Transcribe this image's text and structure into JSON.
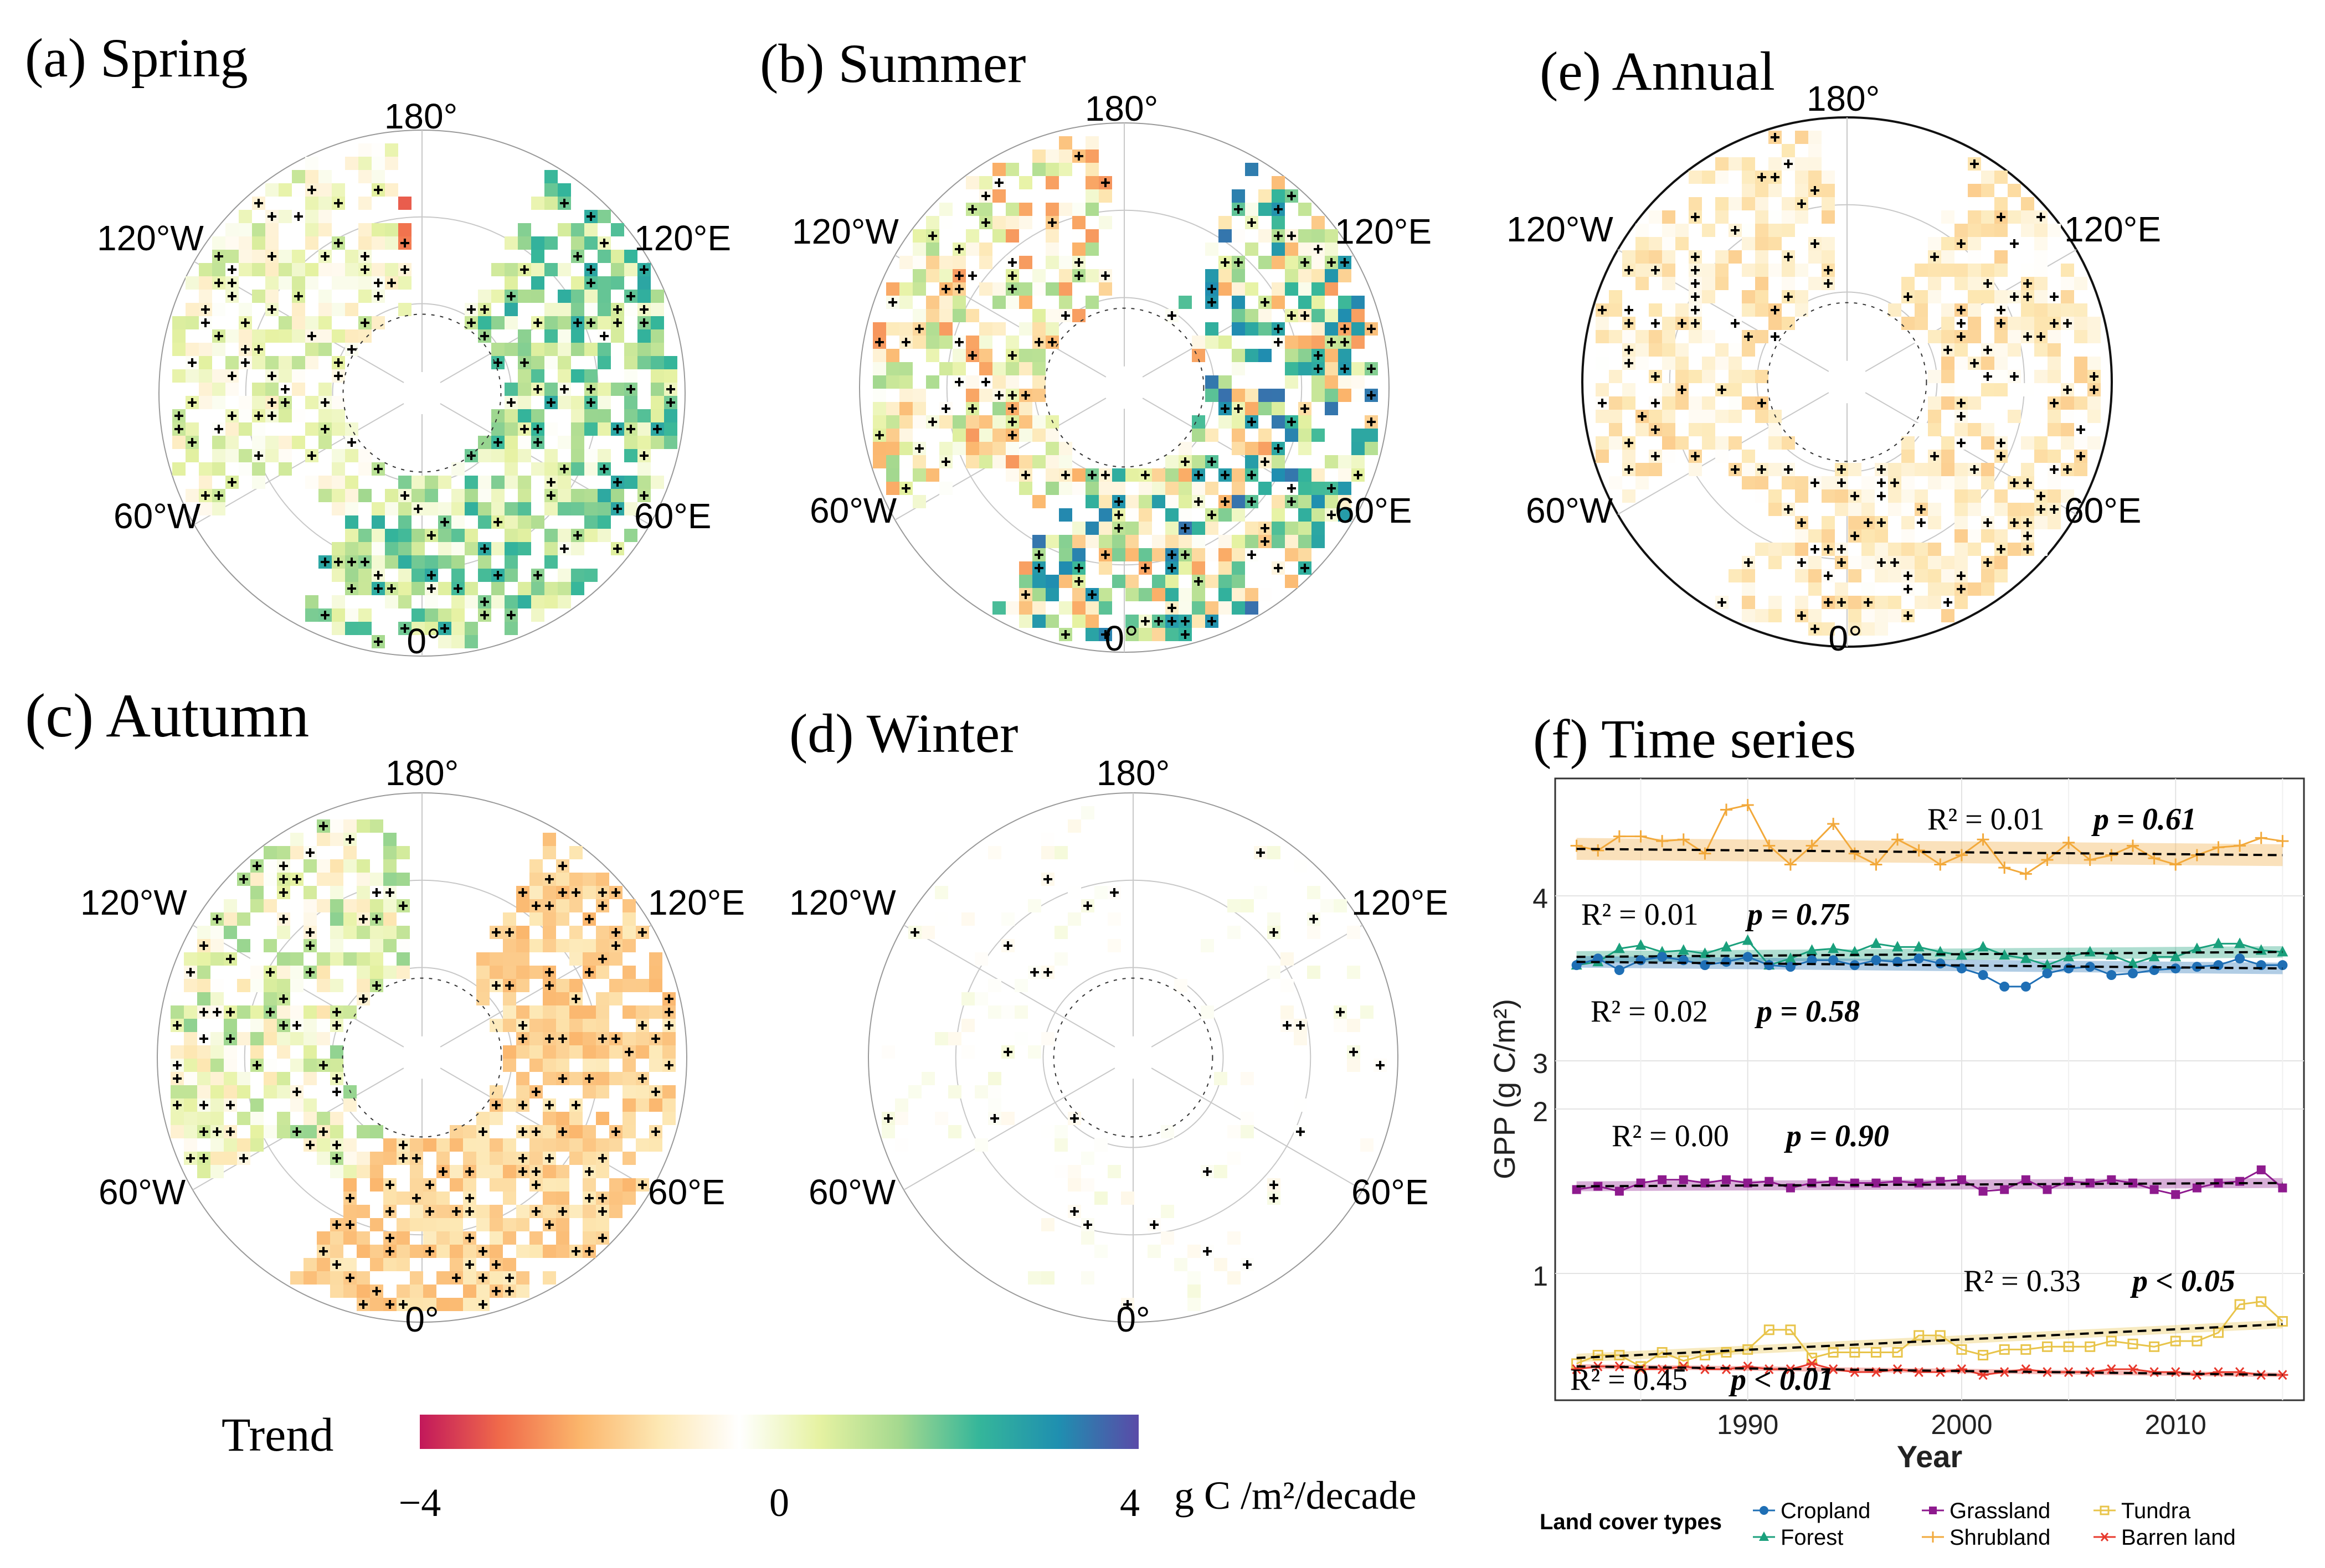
{
  "panels": [
    {
      "id": "a",
      "title": "(a) Spring"
    },
    {
      "id": "b",
      "title": "(b)  Summer"
    },
    {
      "id": "e",
      "title": "(e) Annual"
    },
    {
      "id": "c",
      "title": "(c) Autumn"
    },
    {
      "id": "d",
      "title": "(d) Winter"
    }
  ],
  "map_labels": {
    "top": "180°",
    "upper_left": "120°W",
    "upper_right": "120°E",
    "lower_left": "60°W",
    "lower_right": "60°E",
    "bottom": "0°"
  },
  "colorbar": {
    "title": "Trend",
    "unit": "g C /m²/decade",
    "ticks": [
      {
        "value": -4,
        "label": "−4"
      },
      {
        "value": 0,
        "label": "0"
      },
      {
        "value": 4,
        "label": "4"
      }
    ],
    "stops": [
      "#c2185b",
      "#f06a4a",
      "#fbb56b",
      "#fde8b4",
      "#ffffff",
      "#e6f2a2",
      "#a5d98f",
      "#35b69a",
      "#1f8fb0",
      "#5a4aa8"
    ]
  },
  "chart_data": {
    "type": "line",
    "title": "(f) Time series",
    "xlabel": "Year",
    "ylabel": "GPP (g C/m²)",
    "xlim": [
      1981,
      2016
    ],
    "xticks": [
      1990,
      2000,
      2010
    ],
    "ytick_labels": [
      "1",
      "2",
      "3",
      "4"
    ],
    "x": [
      1982,
      1983,
      1984,
      1985,
      1986,
      1987,
      1988,
      1989,
      1990,
      1991,
      1992,
      1993,
      1994,
      1995,
      1996,
      1997,
      1998,
      1999,
      2000,
      2001,
      2002,
      2003,
      2004,
      2005,
      2006,
      2007,
      2008,
      2009,
      2010,
      2011,
      2012,
      2013,
      2014,
      2015
    ],
    "series": [
      {
        "name": "Shrubland",
        "color": "#f2a93b",
        "marker": "plus",
        "values": [
          4.32,
          4.29,
          4.38,
          4.38,
          4.35,
          4.36,
          4.27,
          4.55,
          4.58,
          4.32,
          4.2,
          4.32,
          4.46,
          4.27,
          4.2,
          4.36,
          4.29,
          4.2,
          4.26,
          4.36,
          4.18,
          4.14,
          4.23,
          4.34,
          4.23,
          4.26,
          4.32,
          4.24,
          4.2,
          4.26,
          4.31,
          4.32,
          4.37,
          4.35
        ],
        "trend": [
          4.3,
          4.26
        ],
        "r2": "R² = 0.01",
        "p": "p = 0.61"
      },
      {
        "name": "Forest",
        "color": "#1aa07c",
        "marker": "triangle",
        "values": [
          3.58,
          3.6,
          3.68,
          3.7,
          3.66,
          3.67,
          3.65,
          3.69,
          3.73,
          3.58,
          3.62,
          3.67,
          3.68,
          3.66,
          3.71,
          3.69,
          3.69,
          3.66,
          3.64,
          3.69,
          3.64,
          3.62,
          3.58,
          3.63,
          3.66,
          3.64,
          3.59,
          3.63,
          3.63,
          3.68,
          3.71,
          3.71,
          3.67,
          3.66
        ],
        "trend": [
          3.63,
          3.66
        ],
        "r2": "R² = 0.01",
        "p": "p = 0.75"
      },
      {
        "name": "Cropland",
        "color": "#1f6fb5",
        "marker": "circle",
        "values": [
          3.58,
          3.62,
          3.55,
          3.61,
          3.63,
          3.61,
          3.58,
          3.6,
          3.63,
          3.58,
          3.57,
          3.61,
          3.61,
          3.58,
          3.61,
          3.6,
          3.62,
          3.59,
          3.56,
          3.52,
          3.45,
          3.45,
          3.53,
          3.56,
          3.57,
          3.52,
          3.53,
          3.55,
          3.56,
          3.57,
          3.58,
          3.62,
          3.58,
          3.58
        ],
        "trend": [
          3.6,
          3.56
        ],
        "r2": "R² = 0.02",
        "p": "p = 0.58"
      },
      {
        "name": "Grassland",
        "color": "#8e1a8e",
        "marker": "square",
        "values": [
          1.51,
          1.53,
          1.5,
          1.55,
          1.57,
          1.57,
          1.55,
          1.57,
          1.55,
          1.56,
          1.52,
          1.55,
          1.56,
          1.55,
          1.55,
          1.56,
          1.55,
          1.56,
          1.57,
          1.5,
          1.51,
          1.57,
          1.51,
          1.56,
          1.55,
          1.57,
          1.55,
          1.51,
          1.48,
          1.52,
          1.55,
          1.56,
          1.63,
          1.52
        ],
        "trend": [
          1.53,
          1.55
        ],
        "r2": "R² = 0.00",
        "p": "p = 0.90"
      },
      {
        "name": "Tundra",
        "color": "#e8c44a",
        "marker": "square-open",
        "values": [
          0.68,
          0.71,
          0.71,
          0.67,
          0.72,
          0.69,
          0.71,
          0.72,
          0.73,
          0.8,
          0.8,
          0.7,
          0.72,
          0.72,
          0.72,
          0.72,
          0.78,
          0.78,
          0.73,
          0.71,
          0.73,
          0.73,
          0.74,
          0.74,
          0.74,
          0.76,
          0.75,
          0.74,
          0.76,
          0.76,
          0.79,
          0.89,
          0.9,
          0.83
        ],
        "trend": [
          0.7,
          0.82
        ],
        "r2": "R² = 0.33",
        "p": "p < 0.05"
      },
      {
        "name": "Barren land",
        "color": "#e8392d",
        "marker": "asterisk",
        "values": [
          0.66,
          0.67,
          0.67,
          0.66,
          0.66,
          0.67,
          0.66,
          0.66,
          0.67,
          0.66,
          0.66,
          0.68,
          0.66,
          0.65,
          0.65,
          0.66,
          0.65,
          0.65,
          0.66,
          0.64,
          0.65,
          0.66,
          0.65,
          0.65,
          0.65,
          0.66,
          0.66,
          0.65,
          0.65,
          0.64,
          0.65,
          0.65,
          0.64,
          0.64
        ],
        "trend": [
          0.67,
          0.64
        ],
        "r2": "R² = 0.45",
        "p": "p < 0.01"
      }
    ],
    "legend_title": "Land cover types",
    "legend": [
      "Cropland",
      "Forest",
      "Grassland",
      "Shrubland",
      "Tundra",
      "Barren land"
    ]
  }
}
